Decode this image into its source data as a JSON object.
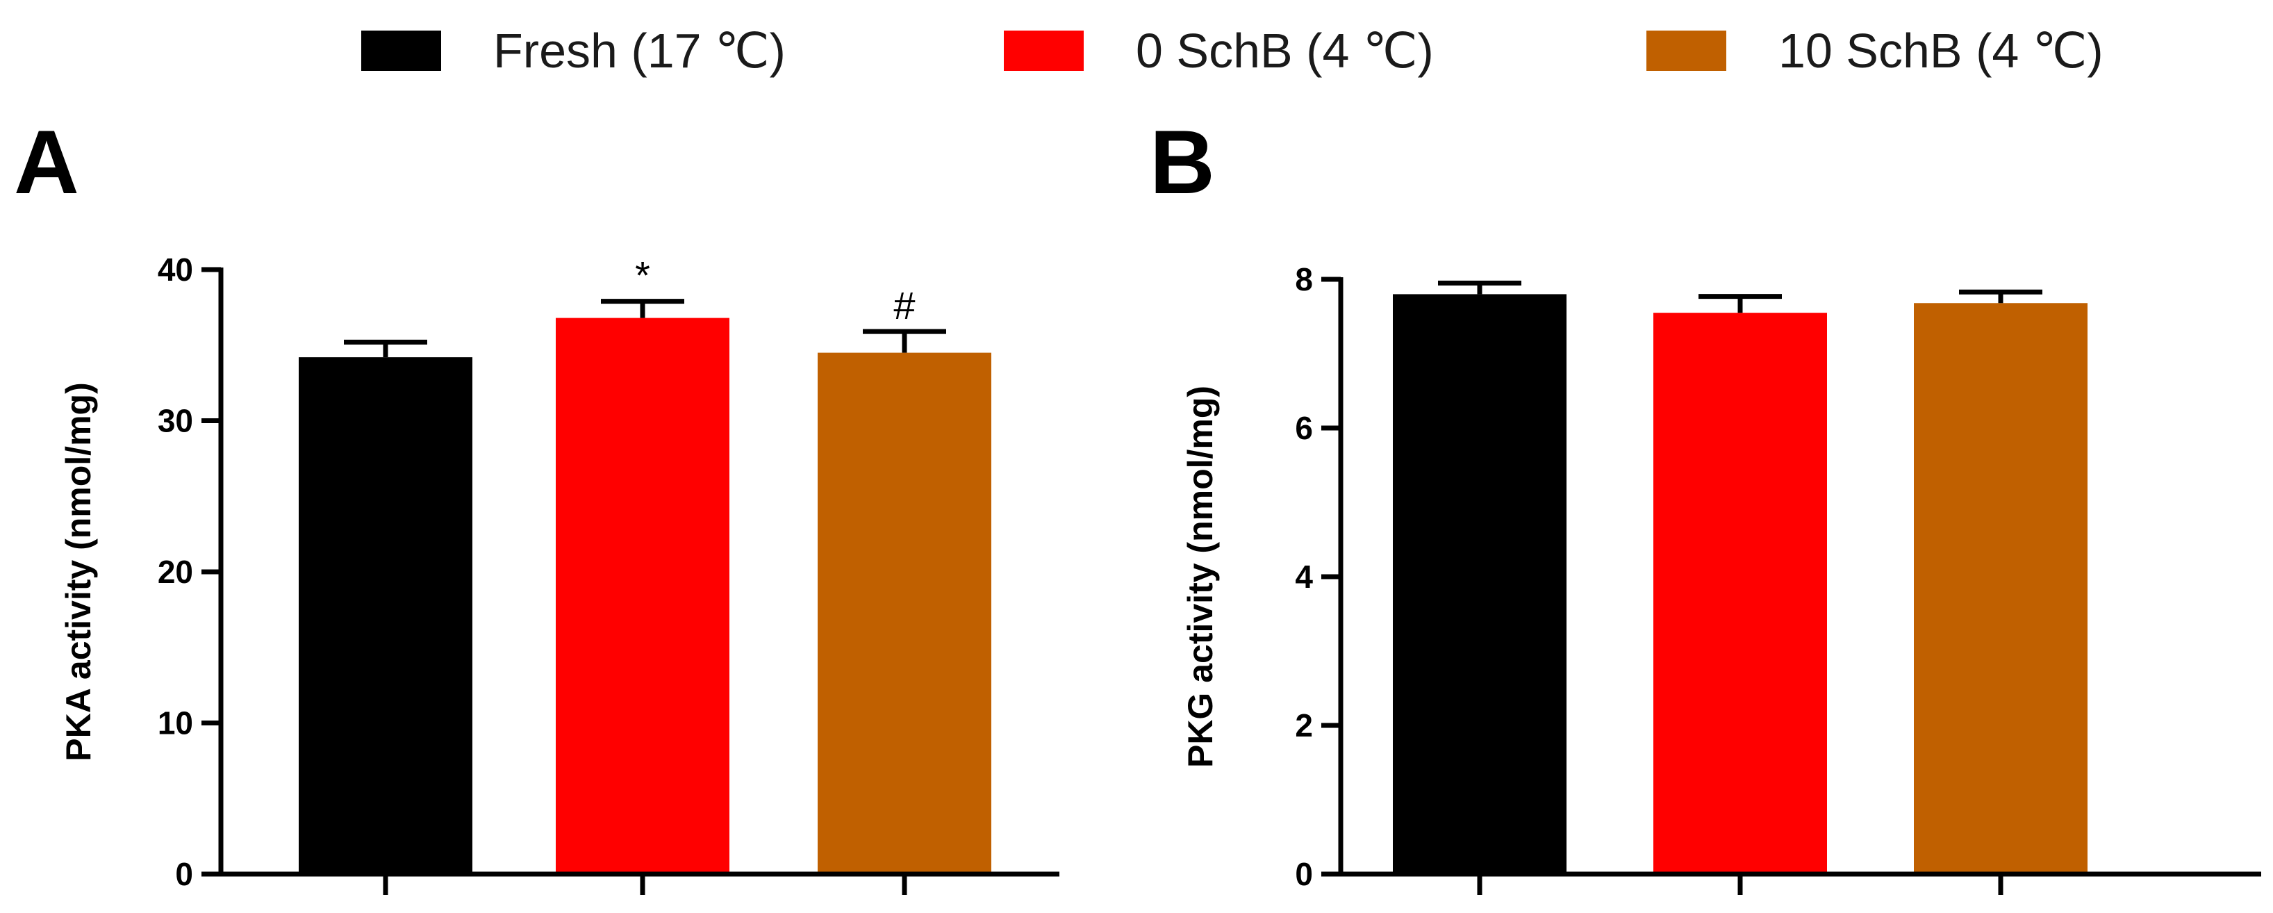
{
  "legend": [
    {
      "label": "Fresh (17 ℃)",
      "color": "#000000"
    },
    {
      "label": "0 SchB (4 ℃)",
      "color": "#ff0000"
    },
    {
      "label": "10 SchB (4 ℃)",
      "color": "#c06000"
    }
  ],
  "chart_data": [
    {
      "panel": "A",
      "type": "bar",
      "categories": [
        "Fresh (17 ℃)",
        "0 SchB (4 ℃)",
        "10 SchB (4 ℃)"
      ],
      "values": [
        34.2,
        36.8,
        34.5
      ],
      "errors": [
        1.0,
        1.1,
        1.4
      ],
      "annotations": [
        "",
        "*",
        "#"
      ],
      "colors": [
        "#000000",
        "#ff0000",
        "#c06000"
      ],
      "ylabel": "PKA activity (nmol/mg)",
      "ylim": [
        0,
        40
      ],
      "yticks": [
        0,
        10,
        20,
        30,
        40
      ]
    },
    {
      "panel": "B",
      "type": "bar",
      "categories": [
        "Fresh (17 ℃)",
        "0 SchB (4 ℃)",
        "10 SchB (4 ℃)"
      ],
      "values": [
        7.8,
        7.55,
        7.68
      ],
      "errors": [
        0.15,
        0.22,
        0.15
      ],
      "annotations": [
        "",
        "",
        ""
      ],
      "colors": [
        "#000000",
        "#ff0000",
        "#c06000"
      ],
      "ylabel": "PKG activity (nmol/mg)",
      "ylim": [
        0,
        8
      ],
      "yticks": [
        0,
        2,
        4,
        6,
        8
      ]
    }
  ]
}
